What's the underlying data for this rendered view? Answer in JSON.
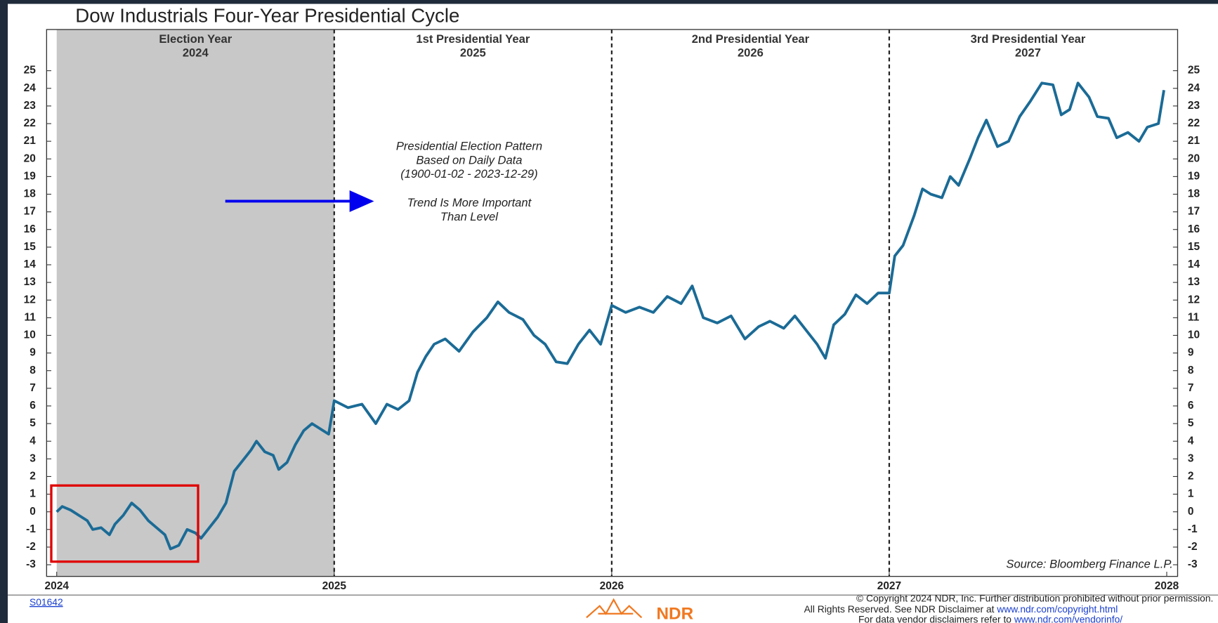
{
  "chart_data": {
    "type": "line",
    "title": "Dow Industrials Four-Year Presidential Cycle",
    "periods": [
      {
        "name": "Election Year",
        "year": "2024"
      },
      {
        "name": "1st Presidential Year",
        "year": "2025"
      },
      {
        "name": "2nd Presidential Year",
        "year": "2026"
      },
      {
        "name": "3rd Presidential Year",
        "year": "2027"
      }
    ],
    "shaded_range": [
      2024,
      2025
    ],
    "annotations": [
      "Presidential Election Pattern",
      "Based on Daily Data",
      "(1900-01-02 - 2023-12-29)",
      "Trend Is More Important",
      "Than Level"
    ],
    "source": "Source:   Bloomberg Finance L.P.",
    "footer": {
      "code": "S01642",
      "logo": "NDR",
      "copyright": "© Copyright 2024 NDR, Inc. Further distribution prohibited without prior permission.",
      "rights": "All Rights Reserved. See NDR Disclaimer at ",
      "rights_link": "www.ndr.com/copyright.html",
      "vendor": "For data vendor disclaimers refer to ",
      "vendor_link": "www.ndr.com/vendorinfo/"
    },
    "x": [
      2024.0,
      2024.02,
      2024.05,
      2024.08,
      2024.11,
      2024.13,
      2024.16,
      2024.19,
      2024.21,
      2024.24,
      2024.27,
      2024.3,
      2024.33,
      2024.36,
      2024.39,
      2024.41,
      2024.44,
      2024.47,
      2024.5,
      2024.52,
      2024.55,
      2024.58,
      2024.61,
      2024.64,
      2024.67,
      2024.7,
      2024.72,
      2024.75,
      2024.78,
      2024.8,
      2024.83,
      2024.86,
      2024.89,
      2024.92,
      2024.95,
      2024.98,
      2025.0,
      2025.05,
      2025.1,
      2025.15,
      2025.19,
      2025.23,
      2025.27,
      2025.3,
      2025.33,
      2025.36,
      2025.4,
      2025.45,
      2025.5,
      2025.55,
      2025.59,
      2025.63,
      2025.68,
      2025.72,
      2025.76,
      2025.8,
      2025.84,
      2025.88,
      2025.92,
      2025.96,
      2026.0,
      2026.05,
      2026.1,
      2026.15,
      2026.2,
      2026.25,
      2026.29,
      2026.33,
      2026.38,
      2026.43,
      2026.48,
      2026.53,
      2026.57,
      2026.62,
      2026.66,
      2026.7,
      2026.74,
      2026.77,
      2026.8,
      2026.84,
      2026.88,
      2026.92,
      2026.96,
      2027.0,
      2027.02,
      2027.05,
      2027.09,
      2027.12,
      2027.15,
      2027.19,
      2027.22,
      2027.25,
      2027.29,
      2027.32,
      2027.35,
      2027.39,
      2027.43,
      2027.47,
      2027.51,
      2027.55,
      2027.59,
      2027.62,
      2027.65,
      2027.68,
      2027.72,
      2027.75,
      2027.79,
      2027.82,
      2027.86,
      2027.9,
      2027.93,
      2027.97,
      2027.99
    ],
    "series": [
      {
        "name": "Dow Industrials",
        "color": "#1b6b96",
        "values": [
          0,
          0.3,
          0.1,
          -0.2,
          -0.5,
          -1.0,
          -0.9,
          -1.3,
          -0.7,
          -0.2,
          0.5,
          0.1,
          -0.5,
          -0.9,
          -1.3,
          -2.1,
          -1.9,
          -1.0,
          -1.2,
          -1.5,
          -0.9,
          -0.3,
          0.5,
          2.3,
          2.9,
          3.5,
          4.0,
          3.4,
          3.2,
          2.4,
          2.8,
          3.8,
          4.6,
          5.0,
          4.7,
          4.4,
          6.3,
          5.9,
          6.1,
          5.0,
          6.1,
          5.8,
          6.3,
          7.9,
          8.8,
          9.5,
          9.8,
          9.1,
          10.2,
          11.0,
          11.9,
          11.3,
          10.9,
          10.0,
          9.5,
          8.5,
          8.4,
          9.5,
          10.3,
          9.5,
          11.7,
          11.3,
          11.6,
          11.3,
          12.2,
          11.8,
          12.8,
          11.0,
          10.7,
          11.1,
          9.8,
          10.5,
          10.8,
          10.4,
          11.1,
          10.3,
          9.5,
          8.7,
          10.6,
          11.2,
          12.3,
          11.8,
          12.4,
          12.4,
          14.5,
          15.1,
          16.8,
          18.3,
          18.0,
          17.8,
          19.0,
          18.5,
          20.0,
          21.2,
          22.2,
          20.7,
          21.0,
          22.4,
          23.3,
          24.3,
          24.2,
          22.5,
          22.8,
          24.3,
          23.5,
          22.4,
          22.3,
          21.2,
          21.5,
          21.0,
          21.8,
          22.0,
          23.9
        ]
      }
    ],
    "xlim": [
      2024,
      2028
    ],
    "xticks": [
      2024,
      2025,
      2026,
      2027,
      2028
    ],
    "ylim": [
      -3,
      25
    ],
    "yticks": [
      -3,
      -2,
      -1,
      0,
      1,
      2,
      3,
      4,
      5,
      6,
      7,
      8,
      9,
      10,
      11,
      12,
      13,
      14,
      15,
      16,
      17,
      18,
      19,
      20,
      21,
      22,
      23,
      24,
      25
    ],
    "shade_color": "#c8c8c8"
  }
}
